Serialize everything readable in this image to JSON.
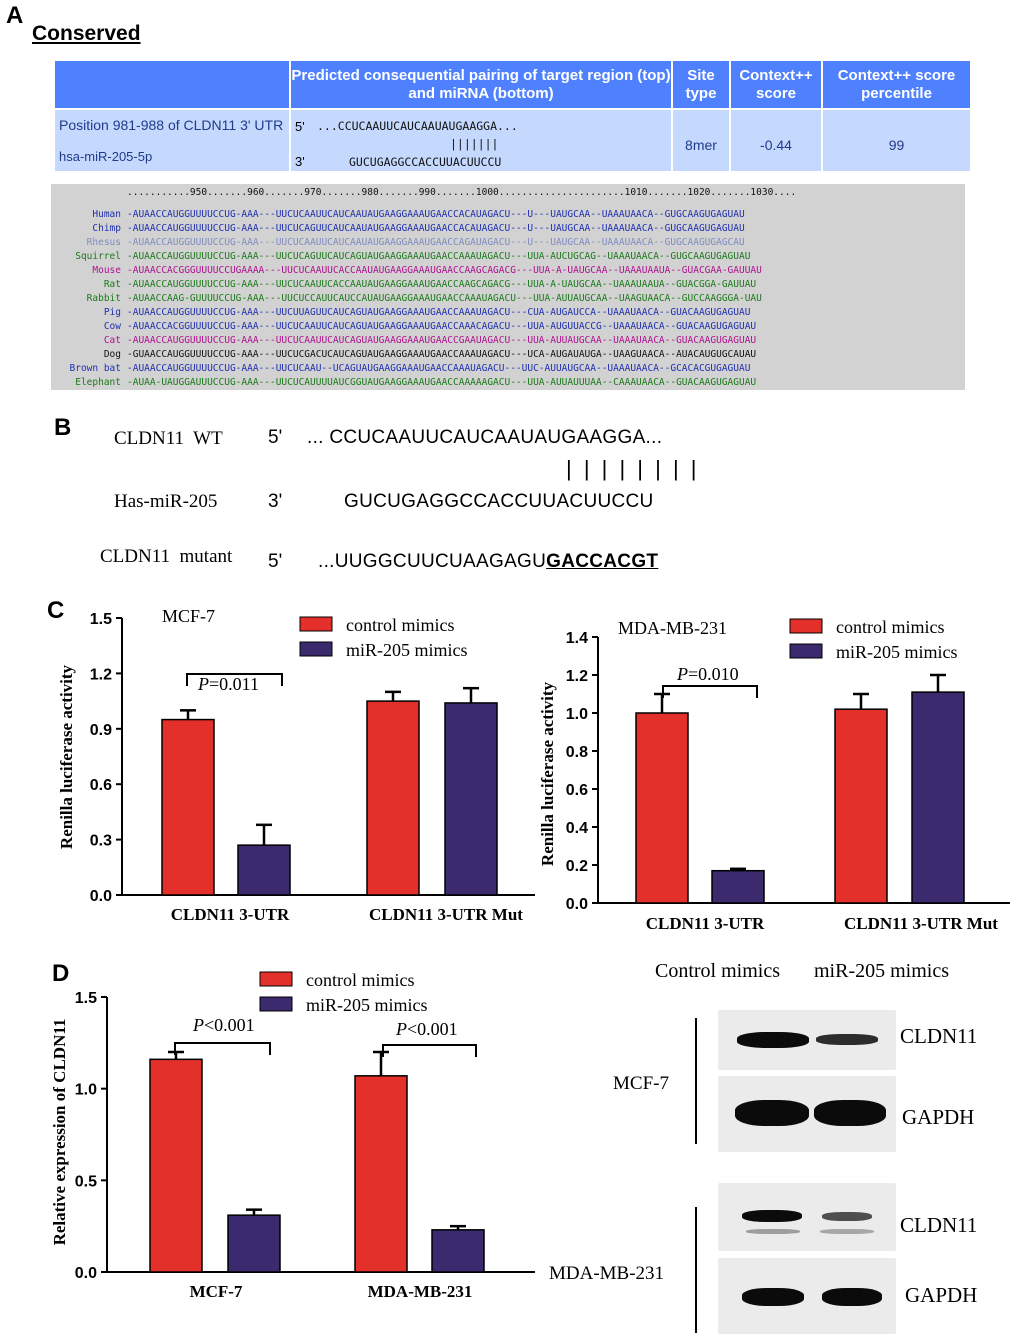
{
  "panel_labels": {
    "a": "A",
    "b": "B",
    "c": "C",
    "d": "D"
  },
  "panelA": {
    "heading": "Conserved",
    "header": {
      "col1": "",
      "col2": "Predicted consequential pairing of target region (top) and miRNA (bottom)",
      "col3": "Site type",
      "col4": "Context++ score",
      "col5": "Context++ score percentile"
    },
    "row": {
      "position": "Position 981-988 of CLDN11 3' UTR",
      "mirna": "hsa-miR-205-5p",
      "five": "5'",
      "three": "3'",
      "target_seq": "...CCUCAAUUCAUCAAUAUGAAGGA...",
      "pairs": "|||||||",
      "mirna_seq": "GUCUGAGGCCACCUUACUUCCU",
      "site_type": "8mer",
      "context_score": "-0.44",
      "percentile": "99"
    },
    "ruler": "...........950.......960.......970.......980.......990.......1000......................1010.......1020.......1030....",
    "species": [
      {
        "name": "Human",
        "color": "#1f2fb0",
        "seq": "-AUAACCAUGGUUUUCCUG-AAA---UUCUCAAUUCAUCAAUAUGAAGGAAAUGAACCACAUAGACU---U---UAUGCAA--UAAAUAACA--GUGCAAGUGAGUAU"
      },
      {
        "name": "Chimp",
        "color": "#1f2fb0",
        "seq": "-AUAACCAUGGUUUUCCUG-AAA---UUCUCAGUUCAUCAAUAUGAAGGAAAUGAACCACAUAGACU---U---UAUGCAA--UAAAUAACA--GUGCAAGUGAGUAU"
      },
      {
        "name": "Rhesus",
        "color": "#7f8cc0",
        "seq": "-AUAACCAUGGUUUUCCUG-AAA---UUCUCAAUUCAUCAAUAUGAAGGAAAUGAACCAGAUAGACU---U---UAUGCAA--UAAAUAACA--GUGCAAGUGAGCAU"
      },
      {
        "name": "Squirrel",
        "color": "#1a7a1a",
        "seq": "-AUAACCAUGGUUUUCCUG-AAA---UUCUCAGUUCAUCAGUAUGAAGGAAAUGAACCAAAUAGACU---UUA-AUCUGCAG--UAAAUAACA--GUGCAAGUGAGUAU"
      },
      {
        "name": "Mouse",
        "color": "#b0108f",
        "seq": "-AUAACCACGGGUUUUCCUGAAAA---UUCUCAAUUCACCAAUAUGAAGGAAAUGAACCAAGCAGACG---UUA-A-UAUGCAA--UAAAUAAUA--GUACGAA-GAUUAU"
      },
      {
        "name": "Rat",
        "color": "#1a7a1a",
        "seq": "-AUAACCAUGGUUUUCCUG-AAA---UUCUCAAUUCACCAAUAUGAAGGAAAUGAACCAAGCAGACG---UUA-A-UAUGCAA--UAAAUAAUA--GUACGGA-GAUUAU"
      },
      {
        "name": "Rabbit",
        "color": "#1a7a1a",
        "seq": "-AUAACCAAG-GUUUUCCUG-AAA---UUCUCCAUUCAUCCAUAUGAAGGAAAUGAACCAAAUAGACU---UUA-AUUAUGCAA--UAAGUAACA--GUCCAAGGGA-UAU"
      },
      {
        "name": "Pig",
        "color": "#1f2fb0",
        "seq": "-AUAACCAUGGUUUUCCUG-AAA---UUCUUAGUUCAUCAGUAUGAAGGAAAUGAACCAAAUAGACU---CUA-AUGAUCCA--UAAAUAACA--GUACAAGUGAGUAU"
      },
      {
        "name": "Cow",
        "color": "#1f2fb0",
        "seq": "-AUAACCACGGUUUUCCUG-AAA---UUCUCAAUUCAUCAGUAUGAAGGAAAUGAACCAAACAGACU---UUA-AUGUUACCG--UAAAUAACA--GUACAAGUGAGUAU"
      },
      {
        "name": "Cat",
        "color": "#b0108f",
        "seq": "-AUAACCAUGGUUUUCCUG-AAA---UUCUCAAUUCAUCAGUAUGAAGGAAAUGAACCGAAUAGACU---UUA-AUUAUGCAA--UAAAUAACA--GUACAAGUGAGUAU"
      },
      {
        "name": "Dog",
        "color": "#111111",
        "seq": "-GUAACCAUGGUUUUCCUG-AAA---UUCUCGACUCAUCAGUAUGAAGGAAAUGAACCAAAUAGACU---UCA-AUGAUAUGA--UAAGUAACA--AUACAUGUGCAUAU"
      },
      {
        "name": "Brown bat",
        "color": "#1f2fb0",
        "seq": "-AUAACCAUGGUUUUCCUG-AAA---UUCUCAAU--UCAGUAUGAAGGAAAUGAACCAAAUAGACU---UUC-AUUAUGCAA--UAAAUAACA--GCACACGUGAGUAU"
      },
      {
        "name": "Elephant",
        "color": "#1a7a1a",
        "seq": "-AUAA-UAUGGAUUUCCUG-AAA---UUCUCAUUUUAUCGGUAUGAAGGAAAUGAACCAAAAAGACU---UUA-AUUAUUUAA--CAAAUAACA--GUACAAGUGAGUAU"
      }
    ]
  },
  "panelB": {
    "wt_label": "CLDN11  WT",
    "wt_prime": "5'",
    "wt_seq": "... CCUCAAUUCAUCAAUAUGAAGGA...",
    "pairs": "| | | | | | | |",
    "mir_label": "Has-miR-205",
    "mir_prime": "3'",
    "mir_seq": "GUCUGAGGCCACCUUACUUCCU",
    "mut_label": "CLDN11  mutant",
    "mut_prime": "5'",
    "mut_seq_prefix": "...UUGGCUUCUAAGAGU",
    "mut_seq_bold": "GACCACGT"
  },
  "legend": {
    "control": "control mimics",
    "mir": "miR-205 mimics"
  },
  "colors": {
    "control": "#e4302a",
    "mir": "#3b2a6e"
  },
  "chart_data": [
    {
      "type": "bar",
      "title": "MCF-7",
      "ylabel": "Renilla luciferase  activity",
      "categories": [
        "CLDN11  3-UTR",
        "CLDN11  3-UTR Mut"
      ],
      "series": [
        {
          "name": "control mimics",
          "values": [
            0.95,
            1.05
          ],
          "errors": [
            0.05,
            0.05
          ]
        },
        {
          "name": "miR-205 mimics",
          "values": [
            0.27,
            1.04
          ],
          "errors": [
            0.11,
            0.08
          ]
        }
      ],
      "ylim": [
        0,
        1.5
      ],
      "yticks": [
        "0.0",
        "0.3",
        "0.6",
        "0.9",
        "1.2",
        "1.5"
      ],
      "annotation": "P=0.011"
    },
    {
      "type": "bar",
      "title": "MDA-MB-231",
      "ylabel": "Renilla luciferase  activity",
      "categories": [
        "CLDN11  3-UTR",
        "CLDN11  3-UTR Mut"
      ],
      "series": [
        {
          "name": "control mimics",
          "values": [
            1.0,
            1.02
          ],
          "errors": [
            0.1,
            0.08
          ]
        },
        {
          "name": "miR-205 mimics",
          "values": [
            0.17,
            1.11
          ],
          "errors": [
            0.01,
            0.09
          ]
        }
      ],
      "ylim": [
        0,
        1.4
      ],
      "yticks": [
        "0.0",
        "0.2",
        "0.4",
        "0.6",
        "0.8",
        "1.0",
        "1.2",
        "1.4"
      ],
      "annotation": "P=0.010"
    },
    {
      "type": "bar",
      "title": "",
      "ylabel": "Relative expression of CLDN11",
      "categories": [
        "MCF-7",
        "MDA-MB-231"
      ],
      "series": [
        {
          "name": "control mimics",
          "values": [
            1.16,
            1.07
          ],
          "errors": [
            0.04,
            0.13
          ]
        },
        {
          "name": "miR-205 mimics",
          "values": [
            0.31,
            0.23
          ],
          "errors": [
            0.03,
            0.02
          ]
        }
      ],
      "ylim": [
        0,
        1.5
      ],
      "yticks": [
        "0.0",
        "0.5",
        "1.0",
        "1.5"
      ],
      "annotation": "P<0.001"
    }
  ],
  "blot": {
    "col_control": "Control mimics",
    "col_mir": "miR-205 mimics",
    "cell1": "MCF-7",
    "cell2": "MDA-MB-231",
    "cldn11": "CLDN11",
    "gapdh": "GAPDH"
  }
}
